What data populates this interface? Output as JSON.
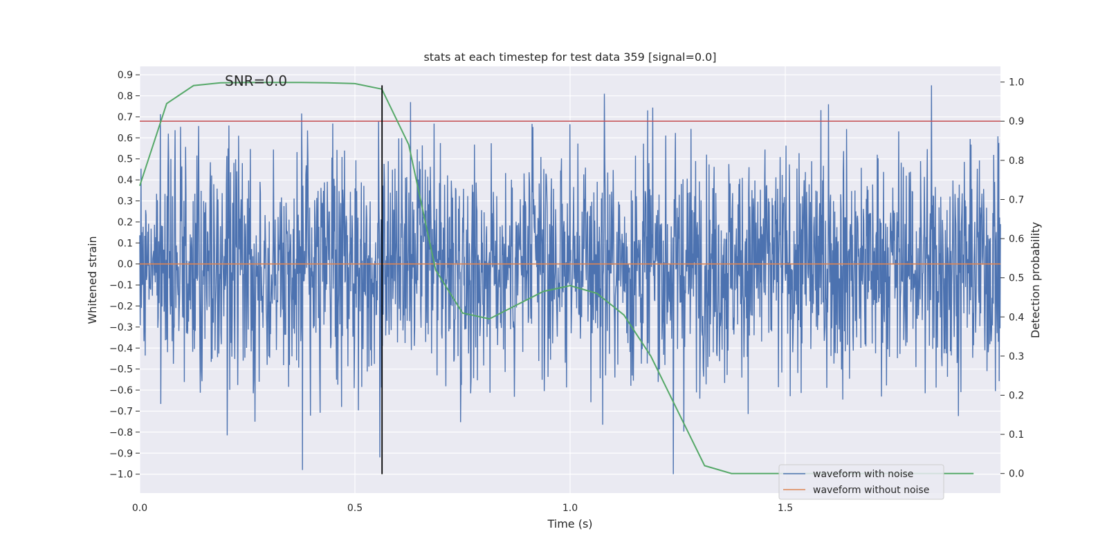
{
  "chart_data": {
    "type": "line",
    "title": "stats at each timestep for test data 359 [signal=0.0]",
    "xlabel": "Time (s)",
    "ylabel": "Whitened strain",
    "y2label": "Detection probability",
    "xlim": [
      0.0,
      2.0
    ],
    "ylim": [
      -1.09,
      0.94
    ],
    "y2lim": [
      -0.05,
      1.04
    ],
    "x_ticks": [
      0.0,
      0.5,
      1.0,
      1.5
    ],
    "x_tick_labels": [
      "0.0",
      "0.5",
      "1.0",
      "1.5"
    ],
    "y_ticks": [
      0.9,
      0.8,
      0.7,
      0.6,
      0.5,
      0.4,
      0.3,
      0.2,
      0.1,
      0.0,
      -0.1,
      -0.2,
      -0.3,
      -0.4,
      -0.5,
      -0.6,
      -0.7,
      -0.8,
      -0.9,
      -1.0
    ],
    "y_tick_labels": [
      "0.9",
      "0.8",
      "0.7",
      "0.6",
      "0.5",
      "0.4",
      "0.3",
      "0.2",
      "0.1",
      "0.0",
      "−0.1",
      "−0.2",
      "−0.3",
      "−0.4",
      "−0.5",
      "−0.6",
      "−0.7",
      "−0.8",
      "−0.9",
      "−1.0"
    ],
    "y2_ticks": [
      1.0,
      0.9,
      0.8,
      0.7,
      0.6,
      0.5,
      0.4,
      0.3,
      0.2,
      0.1,
      0.0
    ],
    "y2_tick_labels": [
      "1.0",
      "0.9",
      "0.8",
      "0.7",
      "0.6",
      "0.5",
      "0.4",
      "0.3",
      "0.2",
      "0.1",
      "0.0"
    ],
    "grid": true,
    "annotation": "SNR=0.0",
    "annotation_at": {
      "x": 0.2,
      "y": 0.87
    },
    "vertical_marker_x": 0.563,
    "vertical_marker_span": [
      -1.0,
      0.85
    ],
    "threshold_probability": 0.9,
    "series": [
      {
        "name": "waveform with noise",
        "axis": "left",
        "color": "#4c72b0",
        "noise_samples": 2048,
        "approx_std": 0.27,
        "approx_range": [
          -1.0,
          0.85
        ],
        "notable_points": [
          {
            "x": 0.066,
            "y": 0.62
          },
          {
            "x": 0.23,
            "y": 0.61
          },
          {
            "x": 0.378,
            "y": -0.98
          },
          {
            "x": 0.555,
            "y": 0.68
          },
          {
            "x": 0.558,
            "y": -0.92
          },
          {
            "x": 1.08,
            "y": 0.81
          },
          {
            "x": 1.24,
            "y": -1.0
          },
          {
            "x": 1.6,
            "y": 0.76
          },
          {
            "x": 1.84,
            "y": 0.85
          }
        ]
      },
      {
        "name": "waveform without noise",
        "axis": "left",
        "color": "#dd8452",
        "x": [
          0.0,
          2.0
        ],
        "y": [
          0.0,
          0.0
        ]
      },
      {
        "name": "detection probability",
        "axis": "right",
        "color": "#55a868",
        "x": [
          0.0,
          0.0625,
          0.125,
          0.1875,
          0.25,
          0.3125,
          0.375,
          0.4375,
          0.5,
          0.5625,
          0.625,
          0.6875,
          0.75,
          0.8125,
          0.875,
          0.9375,
          1.0,
          1.0625,
          1.125,
          1.1875,
          1.25,
          1.3125,
          1.375,
          1.4375,
          1.5,
          1.5625,
          1.625,
          1.6875,
          1.75,
          1.8125,
          1.875,
          1.9375
        ],
        "y": [
          0.735,
          0.945,
          0.991,
          0.998,
          0.999,
          0.999,
          0.999,
          0.998,
          0.996,
          0.982,
          0.84,
          0.52,
          0.41,
          0.395,
          0.43,
          0.465,
          0.48,
          0.46,
          0.405,
          0.3,
          0.16,
          0.02,
          0.0,
          0.0,
          0.0,
          0.0,
          0.0,
          0.0,
          0.0,
          0.0,
          0.0,
          0.0
        ]
      }
    ],
    "legend": {
      "placement": "bottom-right",
      "entries": [
        {
          "label": "waveform with noise",
          "color": "#4c72b0"
        },
        {
          "label": "waveform without noise",
          "color": "#dd8452"
        }
      ]
    },
    "threshold_line_color": "#c44e52",
    "marker_line_color": "#000000",
    "plot_background": "#eaeaf2"
  }
}
